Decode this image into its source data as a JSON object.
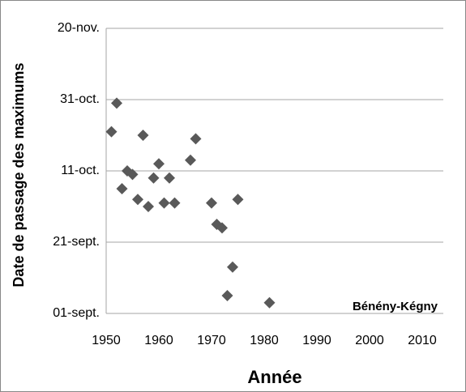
{
  "chart_data": {
    "type": "scatter",
    "x_label": "Année",
    "y_label": "Date de passage des maximums",
    "annotation": "Bénény-Kégny",
    "color": "#595959",
    "grid": true,
    "xlim": [
      1950,
      2014
    ],
    "xticks": [
      1950,
      1960,
      1970,
      1980,
      1990,
      2000,
      2010
    ],
    "ylim": [
      0,
      80
    ],
    "yticks": [
      {
        "value": 0,
        "label": "01-sept."
      },
      {
        "value": 20,
        "label": "21-sept."
      },
      {
        "value": 40,
        "label": "11-oct."
      },
      {
        "value": 60,
        "label": "31-oct."
      },
      {
        "value": 80,
        "label": "20-nov."
      }
    ],
    "x": [
      1951,
      1952,
      1953,
      1954,
      1955,
      1956,
      1957,
      1958,
      1959,
      1960,
      1961,
      1962,
      1963,
      1966,
      1967,
      1970,
      1971,
      1972,
      1975,
      1974,
      1973,
      1981
    ],
    "values": [
      51,
      59,
      35,
      40,
      39,
      32,
      50,
      30,
      38,
      42,
      31,
      38,
      31,
      43,
      49,
      31,
      25,
      24,
      32,
      13,
      5,
      3
    ]
  }
}
